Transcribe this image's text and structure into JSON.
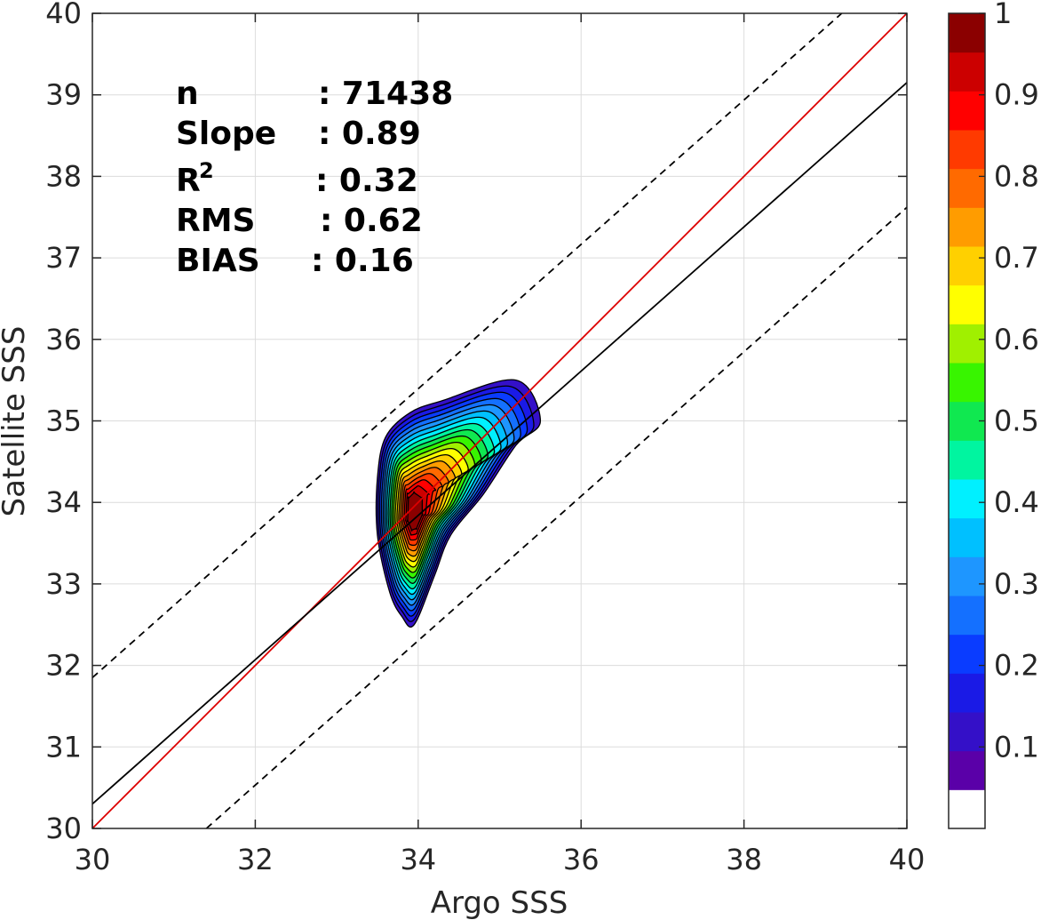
{
  "chart_data": {
    "type": "contour",
    "xlabel": "Argo SSS",
    "ylabel": "Satellite SSS",
    "xlim": [
      30,
      40
    ],
    "ylim": [
      30,
      40
    ],
    "x_ticks": [
      "30",
      "32",
      "34",
      "36",
      "38",
      "40"
    ],
    "y_ticks": [
      "30",
      "31",
      "32",
      "33",
      "34",
      "35",
      "36",
      "37",
      "38",
      "39",
      "40"
    ],
    "grid": true,
    "stats": [
      {
        "label": "n",
        "value": ": 71438"
      },
      {
        "label": "Slope",
        "value": ": 0.89"
      },
      {
        "label": "R",
        "sup": "2",
        "value": ": 0.32"
      },
      {
        "label": "RMS",
        "value": ": 0.62"
      },
      {
        "label": "BIAS",
        "value": ": 0.16"
      }
    ],
    "lines": [
      {
        "name": "one-to-one",
        "color": "#dd0000",
        "style": "solid",
        "x": [
          30,
          40
        ],
        "y": [
          30,
          40
        ]
      },
      {
        "name": "regression",
        "color": "#000000",
        "style": "solid",
        "x": [
          30,
          40
        ],
        "y": [
          30.3,
          39.15
        ]
      },
      {
        "name": "upper-bound",
        "color": "#000000",
        "style": "dashed",
        "x": [
          30,
          39.2
        ],
        "y": [
          31.85,
          40
        ]
      },
      {
        "name": "lower-bound",
        "color": "#000000",
        "style": "dashed",
        "x": [
          31.4,
          40
        ],
        "y": [
          30,
          37.62
        ]
      }
    ],
    "density_peak": {
      "x": 33.95,
      "y": 33.88
    },
    "contour_levels": [
      0.05,
      0.1,
      0.15,
      0.2,
      0.25,
      0.3,
      0.35,
      0.4,
      0.45,
      0.5,
      0.55,
      0.6,
      0.65,
      0.7,
      0.75,
      0.8,
      0.85,
      0.9,
      0.95,
      1.0
    ],
    "colorbar": {
      "ticks": [
        "0.1",
        "0.2",
        "0.3",
        "0.4",
        "0.5",
        "0.6",
        "0.7",
        "0.8",
        "0.9",
        "1"
      ],
      "colors": [
        "#ffffff",
        "#5a00a8",
        "#3410c8",
        "#1a1ae6",
        "#0a3cff",
        "#1470ff",
        "#1e96ff",
        "#00c0ff",
        "#00f0ff",
        "#00f5a0",
        "#10e850",
        "#38f500",
        "#a0f000",
        "#ffff00",
        "#ffd000",
        "#ff9c00",
        "#ff6a00",
        "#ff3a00",
        "#ff0000",
        "#cc0000",
        "#8b0000"
      ]
    }
  }
}
